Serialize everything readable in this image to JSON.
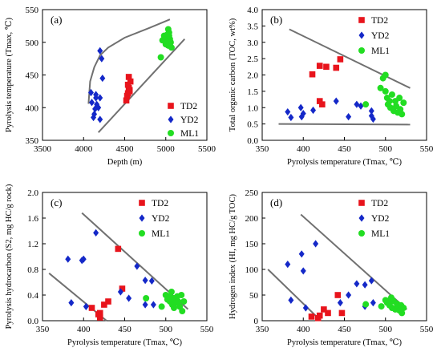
{
  "colors": {
    "TD2": "#e8141c",
    "YD2": "#1428c8",
    "ML1": "#22dd22",
    "trend": "#707070"
  },
  "legend_names": [
    "TD2",
    "YD2",
    "ML1"
  ],
  "chart_data": [
    {
      "id": "a",
      "type": "scatter",
      "panel_label": "(a)",
      "xlabel": "Depth (m)",
      "ylabel": "Pyrolysis temperature (Tmax, ℃)",
      "xlim": [
        3500,
        5500
      ],
      "ylim": [
        350,
        550
      ],
      "xticks": [
        3500,
        4000,
        4500,
        5000,
        5500
      ],
      "yticks": [
        350,
        400,
        450,
        500,
        550
      ],
      "legend": "bottom-right",
      "series": [
        {
          "name": "TD2",
          "marker": "square",
          "points": [
            [
              4520,
              411
            ],
            [
              4530,
              418
            ],
            [
              4540,
              422
            ],
            [
              4550,
              430
            ],
            [
              4540,
              435
            ],
            [
              4560,
              427
            ],
            [
              4550,
              447
            ],
            [
              4570,
              440
            ],
            [
              4560,
              425
            ]
          ]
        },
        {
          "name": "YD2",
          "marker": "diamond",
          "points": [
            [
              4200,
              487
            ],
            [
              4220,
              475
            ],
            [
              4230,
              445
            ],
            [
              4090,
              423
            ],
            [
              4150,
              420
            ],
            [
              4200,
              415
            ],
            [
              4150,
              415
            ],
            [
              4180,
              400
            ],
            [
              4140,
              398
            ],
            [
              4130,
              390
            ],
            [
              4120,
              385
            ],
            [
              4200,
              382
            ],
            [
              4100,
              408
            ],
            [
              4160,
              405
            ]
          ]
        },
        {
          "name": "ML1",
          "marker": "circle",
          "points": [
            [
              4960,
              503
            ],
            [
              4980,
              510
            ],
            [
              5000,
              500
            ],
            [
              5010,
              508
            ],
            [
              5030,
              520
            ],
            [
              5040,
              515
            ],
            [
              5050,
              505
            ],
            [
              5060,
              500
            ],
            [
              5030,
              495
            ],
            [
              5000,
              497
            ],
            [
              5040,
              510
            ],
            [
              5070,
              492
            ],
            [
              4940,
              477
            ],
            [
              5020,
              512
            ]
          ]
        }
      ],
      "trend_lines": [
        [
          [
            4060,
            406
          ],
          [
            4080,
            440
          ],
          [
            4130,
            462
          ],
          [
            4200,
            480
          ],
          [
            4300,
            492
          ],
          [
            4500,
            507
          ],
          [
            4800,
            522
          ],
          [
            5050,
            535
          ]
        ],
        [
          [
            4180,
            362
          ],
          [
            5230,
            505
          ]
        ]
      ]
    },
    {
      "id": "b",
      "type": "scatter",
      "panel_label": "(b)",
      "xlabel": "Pyrolysis temperature (Tmax, ℃)",
      "ylabel": "Total organic carbon (TOC, wt%)",
      "xlim": [
        350,
        550
      ],
      "ylim": [
        0,
        4
      ],
      "xticks": [
        350,
        400,
        450,
        500,
        550
      ],
      "yticks": [
        0.0,
        0.5,
        1.0,
        1.5,
        2.0,
        2.5,
        3.0,
        3.5,
        4.0
      ],
      "legend": "top-right",
      "series": [
        {
          "name": "TD2",
          "marker": "square",
          "points": [
            [
              411,
              2.02
            ],
            [
              420,
              2.28
            ],
            [
              428,
              2.25
            ],
            [
              440,
              2.22
            ],
            [
              445,
              2.48
            ],
            [
              420,
              1.2
            ],
            [
              423,
              1.1
            ]
          ]
        },
        {
          "name": "YD2",
          "marker": "diamond",
          "points": [
            [
              381,
              0.87
            ],
            [
              385,
              0.7
            ],
            [
              397,
              1.0
            ],
            [
              400,
              0.82
            ],
            [
              398,
              0.72
            ],
            [
              412,
              0.92
            ],
            [
              440,
              1.2
            ],
            [
              455,
              0.72
            ],
            [
              465,
              1.1
            ],
            [
              470,
              1.05
            ],
            [
              483,
              0.9
            ],
            [
              485,
              0.65
            ],
            [
              483,
              0.75
            ]
          ]
        },
        {
          "name": "ML1",
          "marker": "circle",
          "points": [
            [
              476,
              1.1
            ],
            [
              494,
              1.6
            ],
            [
              497,
              1.9
            ],
            [
              500,
              2.0
            ],
            [
              500,
              1.5
            ],
            [
              502,
              1.3
            ],
            [
              503,
              1.1
            ],
            [
              505,
              1.2
            ],
            [
              506,
              1.0
            ],
            [
              508,
              1.4
            ],
            [
              510,
              0.9
            ],
            [
              512,
              1.2
            ],
            [
              513,
              1.05
            ],
            [
              515,
              0.85
            ],
            [
              517,
              1.3
            ],
            [
              518,
              0.95
            ],
            [
              520,
              0.8
            ],
            [
              522,
              1.15
            ]
          ]
        }
      ],
      "trend_lines": [
        [
          [
            383,
            3.4
          ],
          [
            530,
            1.6
          ]
        ],
        [
          [
            370,
            0.5
          ],
          [
            530,
            0.48
          ]
        ]
      ]
    },
    {
      "id": "c",
      "type": "scatter",
      "panel_label": "(c)",
      "xlabel": "Pyrolysis temperature (Tmax, ℃)",
      "ylabel": "Pyrolysis hydrocarbon (S2, mg HC/g rock)",
      "xlim": [
        350,
        550
      ],
      "ylim": [
        0,
        2
      ],
      "xticks": [
        350,
        400,
        450,
        500,
        550
      ],
      "yticks": [
        0.0,
        0.4,
        0.8,
        1.2,
        1.6,
        2.0
      ],
      "legend": "top-right",
      "series": [
        {
          "name": "TD2",
          "marker": "square",
          "points": [
            [
              410,
              0.2
            ],
            [
              418,
              0.1
            ],
            [
              420,
              0.12
            ],
            [
              425,
              0.25
            ],
            [
              430,
              0.3
            ],
            [
              442,
              1.12
            ],
            [
              447,
              0.5
            ],
            [
              420,
              0.05
            ]
          ]
        },
        {
          "name": "YD2",
          "marker": "diamond",
          "points": [
            [
              381,
              0.96
            ],
            [
              385,
              0.28
            ],
            [
              398,
              0.94
            ],
            [
              400,
              0.96
            ],
            [
              403,
              0.22
            ],
            [
              415,
              1.37
            ],
            [
              445,
              0.45
            ],
            [
              455,
              0.35
            ],
            [
              465,
              0.85
            ],
            [
              475,
              0.63
            ],
            [
              483,
              0.62
            ],
            [
              475,
              0.25
            ],
            [
              485,
              0.25
            ]
          ]
        },
        {
          "name": "ML1",
          "marker": "circle",
          "points": [
            [
              476,
              0.35
            ],
            [
              495,
              0.22
            ],
            [
              500,
              0.4
            ],
            [
              502,
              0.33
            ],
            [
              505,
              0.3
            ],
            [
              507,
              0.45
            ],
            [
              508,
              0.25
            ],
            [
              510,
              0.35
            ],
            [
              512,
              0.28
            ],
            [
              514,
              0.38
            ],
            [
              515,
              0.3
            ],
            [
              517,
              0.22
            ],
            [
              519,
              0.4
            ],
            [
              520,
              0.15
            ],
            [
              522,
              0.3
            ],
            [
              505,
              0.38
            ],
            [
              510,
              0.2
            ]
          ]
        }
      ],
      "trend_lines": [
        [
          [
            398,
            1.68
          ],
          [
            527,
            0.18
          ]
        ],
        [
          [
            358,
            0.74
          ],
          [
            428,
            0.0
          ]
        ]
      ]
    },
    {
      "id": "d",
      "type": "scatter",
      "panel_label": "(d)",
      "xlabel": "Pyrolysis temperature (Tmax, ℃)",
      "ylabel": "Hydrogen index (HI, mg HC/g TOC)",
      "xlim": [
        350,
        550
      ],
      "ylim": [
        0,
        250
      ],
      "xticks": [
        350,
        400,
        450,
        500,
        550
      ],
      "yticks": [
        0,
        50,
        100,
        150,
        200,
        250
      ],
      "legend": "top-right",
      "series": [
        {
          "name": "TD2",
          "marker": "square",
          "points": [
            [
              410,
              8
            ],
            [
              418,
              5
            ],
            [
              420,
              10
            ],
            [
              425,
              22
            ],
            [
              430,
              15
            ],
            [
              442,
              50
            ],
            [
              447,
              15
            ]
          ]
        },
        {
          "name": "YD2",
          "marker": "diamond",
          "points": [
            [
              381,
              110
            ],
            [
              385,
              40
            ],
            [
              398,
              130
            ],
            [
              400,
              97
            ],
            [
              403,
              25
            ],
            [
              415,
              150
            ],
            [
              445,
              35
            ],
            [
              455,
              50
            ],
            [
              465,
              72
            ],
            [
              475,
              70
            ],
            [
              483,
              78
            ],
            [
              475,
              28
            ],
            [
              485,
              35
            ]
          ]
        },
        {
          "name": "ML1",
          "marker": "circle",
          "points": [
            [
              476,
              32
            ],
            [
              495,
              28
            ],
            [
              500,
              40
            ],
            [
              502,
              35
            ],
            [
              505,
              30
            ],
            [
              507,
              45
            ],
            [
              508,
              25
            ],
            [
              510,
              38
            ],
            [
              512,
              22
            ],
            [
              514,
              33
            ],
            [
              515,
              28
            ],
            [
              517,
              20
            ],
            [
              519,
              30
            ],
            [
              520,
              15
            ],
            [
              522,
              25
            ],
            [
              505,
              40
            ]
          ]
        }
      ],
      "trend_lines": [
        [
          [
            397,
            207
          ],
          [
            526,
            22
          ]
        ],
        [
          [
            357,
            100
          ],
          [
            420,
            2
          ]
        ]
      ]
    }
  ]
}
